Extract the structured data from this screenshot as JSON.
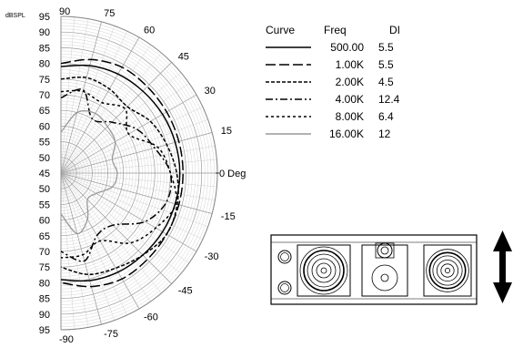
{
  "chart_data": {
    "type": "polar",
    "unit_label": "dBSPL",
    "radial_scale": {
      "labels_top": [
        "95",
        "90",
        "85",
        "80",
        "75",
        "70",
        "65",
        "60",
        "55",
        "50",
        "45"
      ],
      "labels_bottom": [
        "50",
        "55",
        "60",
        "65",
        "70",
        "75",
        "80",
        "85",
        "90",
        "95"
      ],
      "min": 45,
      "max": 95
    },
    "angle_labels": [
      "90",
      "75",
      "60",
      "45",
      "30",
      "15",
      "0 Deg",
      "-15",
      "-30",
      "-45",
      "-60",
      "-75",
      "-90"
    ],
    "angles_deg": [
      90,
      75,
      60,
      45,
      30,
      15,
      0,
      -15,
      -30,
      -45,
      -60,
      -75,
      -90
    ],
    "legend": {
      "headers": {
        "curve": "Curve",
        "freq": "Freq",
        "di": "DI"
      }
    },
    "series": [
      {
        "name": "500.00",
        "di": "5.5",
        "style": "solid",
        "color": "#000000",
        "values": [
          79,
          80.5,
          81.5,
          82,
          82.5,
          82.8,
          83,
          82.8,
          82.5,
          82,
          81.5,
          80.5,
          79
        ]
      },
      {
        "name": "1.00K",
        "di": "5.5",
        "style": "longdash",
        "color": "#000000",
        "values": [
          80,
          82.5,
          84,
          84,
          84,
          84,
          84,
          84,
          84,
          84,
          84,
          82.5,
          80
        ]
      },
      {
        "name": "2.00K",
        "di": "4.5",
        "style": "dash",
        "color": "#000000",
        "values": [
          75,
          76.5,
          76,
          75,
          78,
          80,
          82,
          83.5,
          84,
          82,
          80,
          78.5,
          75
        ]
      },
      {
        "name": "4.00K",
        "di": "12.4",
        "style": "dashdot",
        "color": "#000000",
        "values": [
          69,
          72.5,
          65,
          68,
          73,
          76,
          80,
          80,
          76,
          68.5,
          68,
          74,
          70
        ]
      },
      {
        "name": "8.00K",
        "di": "6.4",
        "style": "shortdash",
        "color": "#000000",
        "values": [
          71,
          72,
          71,
          74,
          70,
          77,
          80,
          83,
          80,
          76.5,
          70,
          72,
          72
        ]
      },
      {
        "name": "16.00K",
        "di": "12",
        "style": "solid",
        "color": "#999999",
        "values": [
          58,
          65,
          67,
          66,
          65,
          62,
          63,
          62,
          58,
          57,
          62,
          65,
          58
        ]
      }
    ]
  }
}
